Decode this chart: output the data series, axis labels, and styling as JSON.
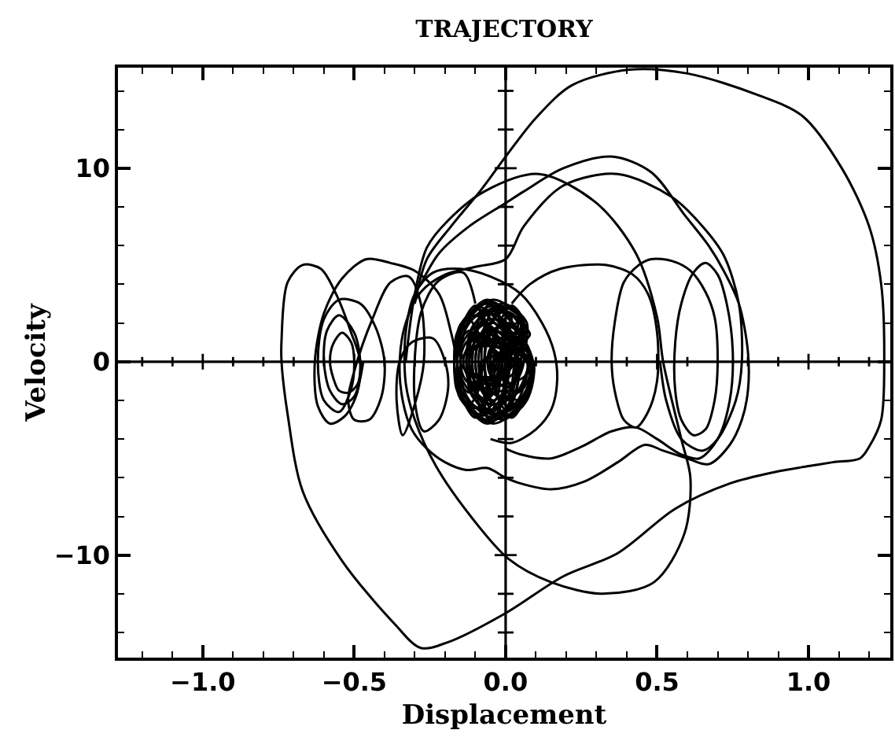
{
  "chart_data": {
    "type": "line",
    "title": "TRAJECTORY",
    "xlabel": "Displacement",
    "ylabel": "Velocity",
    "xlim": [
      -1.28,
      1.27
    ],
    "ylim": [
      -15.3,
      15.2
    ],
    "xticks": [
      {
        "value": -1.2,
        "label": null
      },
      {
        "value": -1.1,
        "label": null
      },
      {
        "value": -1.0,
        "label": "−1.0"
      },
      {
        "value": -0.9,
        "label": null
      },
      {
        "value": -0.8,
        "label": null
      },
      {
        "value": -0.7,
        "label": null
      },
      {
        "value": -0.6,
        "label": null
      },
      {
        "value": -0.5,
        "label": "−0.5"
      },
      {
        "value": -0.4,
        "label": null
      },
      {
        "value": -0.3,
        "label": null
      },
      {
        "value": -0.2,
        "label": null
      },
      {
        "value": -0.1,
        "label": null
      },
      {
        "value": 0.0,
        "label": "0.0"
      },
      {
        "value": 0.1,
        "label": null
      },
      {
        "value": 0.2,
        "label": null
      },
      {
        "value": 0.3,
        "label": null
      },
      {
        "value": 0.4,
        "label": null
      },
      {
        "value": 0.5,
        "label": "0.5"
      },
      {
        "value": 0.6,
        "label": null
      },
      {
        "value": 0.7,
        "label": null
      },
      {
        "value": 0.8,
        "label": null
      },
      {
        "value": 0.9,
        "label": null
      },
      {
        "value": 1.0,
        "label": "1.0"
      },
      {
        "value": 1.1,
        "label": null
      },
      {
        "value": 1.2,
        "label": null
      }
    ],
    "yticks": [
      {
        "value": -14,
        "label": null
      },
      {
        "value": -12,
        "label": null
      },
      {
        "value": -10,
        "label": "−10"
      },
      {
        "value": -8,
        "label": null
      },
      {
        "value": -6,
        "label": null
      },
      {
        "value": -4,
        "label": null
      },
      {
        "value": -2,
        "label": null
      },
      0,
      {
        "value": 2,
        "label": null
      },
      {
        "value": 4,
        "label": null
      },
      {
        "value": 6,
        "label": null
      },
      {
        "value": 8,
        "label": null
      },
      10,
      {
        "value": 12,
        "label": null
      },
      {
        "value": 14,
        "label": null
      }
    ],
    "ref_lines": [
      {
        "axis": "x",
        "value": 0
      },
      {
        "axis": "y",
        "value": 0
      }
    ],
    "series": [
      {
        "color": "#000000",
        "x": [
          -0.3,
          -0.26,
          -0.18,
          -0.08,
          0.0,
          0.1,
          0.22,
          0.41,
          0.6,
          0.83,
          0.98,
          1.11,
          1.2,
          1.24,
          1.25,
          1.24,
          1.2,
          1.17,
          1.08,
          1.0,
          0.89,
          0.74,
          0.56,
          0.37,
          0.19,
          0.0,
          -0.19,
          -0.28,
          -0.37,
          -0.54,
          -0.67,
          -0.72,
          -0.74,
          -0.74,
          -0.72,
          -0.67,
          -0.61,
          -0.56,
          -0.51,
          -0.48,
          -0.49,
          -0.53,
          -0.58,
          -0.62,
          -0.63,
          -0.6,
          -0.54,
          -0.46,
          -0.38,
          -0.3,
          -0.22,
          -0.18,
          -0.16
        ],
        "values": [
          3.0,
          5.3,
          7.0,
          8.9,
          10.6,
          12.6,
          14.3,
          15.1,
          14.9,
          13.8,
          12.7,
          10.0,
          7.0,
          4.0,
          0.0,
          -3.0,
          -4.4,
          -5.0,
          -5.2,
          -5.4,
          -5.7,
          -6.3,
          -7.6,
          -9.9,
          -11.1,
          -13.0,
          -14.5,
          -14.8,
          -13.5,
          -10.3,
          -6.7,
          -2.7,
          0.0,
          1.1,
          4.1,
          5.0,
          4.8,
          3.5,
          1.5,
          0.0,
          -1.6,
          -2.8,
          -3.2,
          -2.3,
          0.0,
          2.5,
          4.3,
          5.3,
          5.1,
          4.7,
          3.5,
          1.5,
          0.0
        ]
      },
      {
        "color": "#000000",
        "x": [
          -0.28,
          -0.22,
          -0.12,
          0.0,
          0.06,
          0.19,
          0.35,
          0.48,
          0.59,
          0.67,
          0.72,
          0.77,
          0.8,
          0.8,
          0.78,
          0.74,
          0.67,
          0.6,
          0.52,
          0.46,
          0.37,
          0.26,
          0.15,
          0.05,
          0.0,
          -0.06,
          -0.13,
          -0.2,
          -0.26,
          -0.31,
          -0.34,
          -0.35,
          -0.33,
          -0.28,
          -0.2,
          -0.1,
          0.0,
          0.06,
          0.19,
          0.37,
          0.55,
          0.65,
          0.72,
          0.77,
          0.78,
          0.76,
          0.7,
          0.65,
          0.58,
          0.53,
          0.51
        ],
        "values": [
          4.0,
          5.6,
          7.0,
          8.2,
          8.8,
          10.0,
          10.6,
          9.8,
          7.6,
          6.0,
          4.7,
          3.0,
          0.5,
          -1.5,
          -3.0,
          -4.3,
          -5.3,
          -5.0,
          -4.6,
          -4.3,
          -5.2,
          -6.2,
          -6.6,
          -6.3,
          -6.0,
          -5.5,
          -5.6,
          -5.2,
          -4.5,
          -3.5,
          -2.0,
          0.0,
          2.0,
          3.6,
          4.5,
          4.9,
          5.3,
          7.0,
          9.1,
          9.7,
          8.5,
          7.0,
          5.5,
          3.0,
          0.0,
          -2.0,
          -4.0,
          -4.6,
          -4.0,
          -2.0,
          0.0
        ]
      },
      {
        "color": "#000000",
        "x": [
          -0.33,
          -0.3,
          -0.26,
          -0.19,
          -0.07,
          0.11,
          0.3,
          0.43,
          0.5,
          0.52,
          0.58,
          0.61,
          0.59,
          0.49,
          0.32,
          0.15,
          0.01,
          -0.11,
          -0.23,
          -0.3,
          -0.33,
          -0.33,
          -0.3,
          -0.24,
          -0.15,
          -0.05,
          0.05,
          0.12,
          0.16,
          0.17,
          0.15,
          0.1,
          0.02,
          -0.05
        ],
        "values": [
          0.0,
          3.5,
          5.9,
          7.3,
          8.8,
          9.7,
          8.2,
          5.6,
          2.3,
          0.0,
          -4.0,
          -6.0,
          -8.9,
          -11.4,
          -12.0,
          -11.4,
          -10.2,
          -8.1,
          -5.4,
          -3.0,
          -1.1,
          1.5,
          3.5,
          4.6,
          4.8,
          4.4,
          3.5,
          2.0,
          0.5,
          -1.0,
          -2.5,
          -3.5,
          -4.2,
          -4.0
        ]
      },
      {
        "color": "#000000",
        "x": [
          0.02,
          0.08,
          0.18,
          0.33,
          0.42,
          0.47,
          0.5,
          0.5,
          0.47,
          0.43,
          0.39,
          0.36,
          0.35,
          0.36,
          0.39,
          0.44,
          0.48,
          0.55,
          0.61,
          0.66,
          0.69,
          0.7,
          0.69,
          0.66,
          0.62,
          0.58,
          0.56,
          0.56,
          0.58,
          0.62,
          0.66,
          0.7,
          0.73,
          0.75,
          0.74,
          0.7,
          0.64,
          0.58,
          0.5,
          0.43,
          0.35,
          0.25,
          0.15,
          0.05,
          0.0
        ],
        "values": [
          3.0,
          4.0,
          4.8,
          5.0,
          4.5,
          3.5,
          1.5,
          -1.0,
          -2.6,
          -3.4,
          -3.0,
          -1.5,
          0.0,
          2.0,
          4.1,
          5.0,
          5.3,
          5.2,
          4.7,
          3.6,
          2.3,
          0.0,
          -2.0,
          -3.5,
          -3.8,
          -3.0,
          -1.5,
          1.0,
          3.0,
          4.6,
          5.1,
          4.5,
          3.0,
          0.5,
          -2.0,
          -4.0,
          -5.0,
          -4.8,
          -4.0,
          -3.4,
          -3.6,
          -4.4,
          -5.0,
          -4.8,
          -4.5
        ]
      },
      {
        "color": "#000000",
        "x": [
          -0.47,
          -0.5,
          -0.54,
          -0.58,
          -0.6,
          -0.59,
          -0.55,
          -0.5,
          -0.48,
          -0.49,
          -0.52,
          -0.55,
          -0.57,
          -0.58,
          -0.57,
          -0.54,
          -0.51,
          -0.5,
          -0.51,
          -0.55,
          -0.6,
          -0.62,
          -0.6,
          -0.55,
          -0.48,
          -0.43,
          -0.4,
          -0.41,
          -0.45,
          -0.5,
          -0.52,
          -0.5,
          -0.44,
          -0.38,
          -0.32,
          -0.28,
          -0.27,
          -0.3,
          -0.34,
          -0.36,
          -0.35,
          -0.31,
          -0.24,
          -0.2,
          -0.19,
          -0.22,
          -0.27,
          -0.3,
          -0.28,
          -0.22,
          -0.14,
          -0.1
        ],
        "values": [
          0.0,
          -1.8,
          -2.2,
          -1.5,
          0.0,
          1.6,
          2.4,
          1.5,
          0.0,
          -1.2,
          -1.6,
          -1.5,
          -0.8,
          0.0,
          0.9,
          1.5,
          1.0,
          0.0,
          -1.4,
          -2.6,
          -2.0,
          0.0,
          2.2,
          3.2,
          3.0,
          1.8,
          0.0,
          -1.8,
          -3.0,
          -3.0,
          -2.0,
          -0.5,
          2.2,
          4.1,
          4.4,
          3.0,
          0.0,
          -2.2,
          -3.8,
          -2.0,
          0.0,
          1.0,
          1.2,
          0.0,
          -1.4,
          -3.0,
          -3.6,
          -2.0,
          2.5,
          4.2,
          4.6,
          3.0
        ]
      },
      {
        "color": "#000000",
        "x": [
          0.09,
          0.05,
          -0.04,
          -0.13,
          -0.17,
          -0.13,
          -0.04,
          0.05,
          0.05,
          0.02,
          -0.06,
          -0.14,
          -0.17,
          -0.14,
          -0.06,
          0.02,
          0.09,
          0.06,
          -0.02,
          -0.1,
          -0.13,
          -0.1,
          -0.02,
          0.06,
          0.01,
          -0.02,
          -0.08,
          -0.14,
          -0.17,
          -0.14,
          -0.08,
          -0.02,
          0.09,
          0.06,
          0.0,
          -0.06,
          -0.09,
          -0.06,
          0.0,
          0.06,
          0.03,
          0.01,
          -0.05,
          -0.11,
          -0.13,
          -0.11,
          -0.05,
          0.01,
          -0.03,
          -0.05,
          -0.1,
          -0.15,
          -0.17,
          -0.15,
          -0.1,
          -0.05,
          0.04,
          0.02,
          -0.03,
          -0.08,
          -0.1,
          -0.08,
          -0.03,
          0.02,
          0.09,
          0.07,
          0.02,
          -0.03,
          -0.05,
          -0.03,
          0.02,
          0.07,
          -0.01,
          -0.03,
          -0.07,
          -0.11,
          -0.13,
          -0.11,
          -0.07,
          -0.03,
          -0.01
        ],
        "values": [
          0.0,
          -2.2,
          -3.2,
          -2.2,
          0.0,
          2.2,
          3.2,
          2.2,
          0.0,
          -2.1,
          -3.0,
          -2.1,
          0.0,
          2.1,
          3.0,
          2.1,
          0.0,
          -2.0,
          -2.9,
          -2.0,
          0.0,
          2.0,
          2.9,
          2.0,
          0.0,
          -2.0,
          -2.8,
          -2.0,
          0.0,
          2.0,
          2.8,
          2.0,
          0.0,
          -1.8,
          -2.6,
          -1.8,
          0.0,
          1.8,
          2.6,
          1.8,
          0.0,
          -1.8,
          -2.5,
          -1.8,
          0.0,
          1.8,
          2.5,
          1.8,
          0.0,
          -1.7,
          -2.4,
          -1.7,
          0.0,
          1.7,
          2.4,
          1.7,
          0.0,
          -1.5,
          -2.2,
          -1.5,
          0.0,
          1.5,
          2.2,
          1.5,
          0.0,
          -1.7,
          -2.4,
          -1.7,
          0.0,
          1.7,
          2.4,
          1.7,
          0.0,
          -1.4,
          -2.0,
          -1.4,
          0.0,
          1.4,
          2.0,
          1.4,
          0.0
        ]
      },
      {
        "color": "#000000",
        "x": [
          0.08,
          0.04,
          -0.04,
          -0.12,
          -0.16,
          -0.12,
          -0.04,
          0.04,
          -0.01,
          -0.03,
          -0.09,
          -0.15,
          -0.17,
          -0.15,
          -0.09,
          -0.03,
          0.09,
          0.07,
          0.01,
          -0.05,
          -0.07,
          -0.05,
          0.01,
          0.07,
          0.05,
          0.02,
          -0.05,
          -0.12,
          -0.15,
          -0.12,
          -0.05,
          0.02,
          -0.07,
          -0.09,
          -0.12,
          -0.16,
          -0.17,
          -0.16,
          -0.12,
          -0.09,
          0.03,
          0.02,
          -0.02,
          -0.06,
          -0.07,
          -0.06,
          -0.02,
          0.02,
          -0.01,
          -0.03,
          -0.06,
          -0.1,
          -0.11,
          -0.1,
          -0.06,
          -0.03,
          0.09,
          0.08,
          0.04,
          0.0,
          -0.01,
          0.0,
          0.04,
          0.08,
          -0.04,
          -0.05,
          -0.08,
          -0.11,
          -0.12,
          -0.11,
          -0.08,
          -0.05,
          0.0,
          -0.01,
          -0.03,
          -0.05,
          -0.06,
          -0.05,
          -0.03,
          -0.01,
          0.0
        ],
        "values": [
          0.0,
          -2.0,
          -2.9,
          -2.0,
          0.0,
          2.0,
          2.9,
          2.0,
          0.0,
          -1.9,
          -2.7,
          -1.9,
          0.0,
          1.9,
          2.7,
          1.9,
          0.0,
          -2.0,
          -2.8,
          -2.0,
          0.0,
          2.0,
          2.8,
          2.0,
          0.0,
          -2.2,
          -3.1,
          -2.2,
          0.0,
          2.2,
          3.1,
          2.2,
          0.0,
          -1.5,
          -2.2,
          -1.5,
          0.0,
          1.5,
          2.2,
          1.5,
          0.0,
          -1.3,
          -1.8,
          -1.3,
          0.0,
          1.3,
          1.8,
          1.3,
          0.0,
          -1.1,
          -1.6,
          -1.1,
          0.0,
          1.1,
          1.6,
          1.1,
          0.0,
          -1.4,
          -2.0,
          -1.4,
          0.0,
          1.4,
          2.0,
          1.4,
          0.0,
          -0.8,
          -1.2,
          -0.8,
          0.0,
          0.8,
          1.2,
          0.8,
          0.0,
          -0.7,
          -1.0,
          -0.7,
          0.0,
          0.7,
          1.0,
          0.7,
          0.0
        ]
      },
      {
        "color": "#000000",
        "x": [
          0.08,
          0.04,
          -0.04,
          -0.12,
          -0.16,
          -0.12,
          -0.04,
          0.04,
          0.06,
          0.03,
          -0.04,
          -0.11,
          -0.14,
          -0.11,
          -0.04,
          0.03,
          0.04,
          0.02,
          -0.04,
          -0.1,
          -0.12,
          -0.1,
          -0.04,
          0.02,
          0.09,
          0.05,
          -0.04,
          -0.13,
          -0.17,
          -0.13,
          -0.04,
          0.05,
          -0.04,
          -0.06,
          -0.1,
          -0.14,
          -0.16,
          -0.14,
          -0.1,
          -0.06,
          0.08,
          0.06,
          0.02,
          -0.02,
          -0.04,
          -0.02,
          0.02,
          0.06,
          0.0,
          -0.01,
          -0.04,
          -0.07,
          -0.08,
          -0.07,
          -0.04,
          -0.01,
          -0.02,
          -0.04,
          -0.07,
          -0.11,
          -0.12,
          -0.11,
          -0.07,
          -0.04,
          0.05,
          0.04,
          0.0,
          -0.04,
          -0.05,
          -0.04,
          0.0,
          0.04,
          -0.02,
          -0.03,
          -0.04,
          -0.05,
          -0.06,
          -0.05,
          -0.04,
          -0.03,
          -0.02
        ],
        "values": [
          0.0,
          -1.5,
          -2.2,
          -1.5,
          0.0,
          1.5,
          2.2,
          1.5,
          0.0,
          -1.1,
          -1.6,
          -1.1,
          0.0,
          1.1,
          1.6,
          1.1,
          0.0,
          -0.7,
          -1.0,
          -0.7,
          0.0,
          0.7,
          1.0,
          0.7,
          0.0,
          -1.9,
          -2.7,
          -1.9,
          0.0,
          1.9,
          2.7,
          1.9,
          0.0,
          -2.0,
          -2.9,
          -2.0,
          0.0,
          2.0,
          2.9,
          2.0,
          0.0,
          -2.0,
          -2.9,
          -2.0,
          0.0,
          2.0,
          2.9,
          2.0,
          0.0,
          -1.8,
          -2.6,
          -1.8,
          0.0,
          1.8,
          2.6,
          1.8,
          0.0,
          -1.3,
          -1.9,
          -1.3,
          0.0,
          1.3,
          1.9,
          1.3,
          0.0,
          -0.9,
          -1.3,
          -0.9,
          0.0,
          0.9,
          1.3,
          0.9,
          0.0,
          -0.4,
          -0.5,
          -0.4,
          0.0,
          0.4,
          0.5,
          0.4,
          0.0
        ]
      },
      {
        "color": "#000000",
        "x": [
          0.04,
          0.01,
          -0.06,
          -0.13,
          -0.16,
          -0.13,
          -0.06,
          0.01,
          0.09,
          0.06,
          -0.01,
          -0.08,
          -0.11,
          -0.08,
          -0.01,
          0.06,
          -0.01,
          -0.03,
          -0.08,
          -0.13,
          -0.15,
          -0.13,
          -0.08,
          -0.03,
          0.07,
          0.05,
          0.0,
          -0.05,
          -0.07,
          -0.05,
          0.0,
          0.05,
          0.03,
          0.0,
          -0.06,
          -0.12,
          -0.15,
          -0.12,
          -0.06,
          0.0,
          0.01,
          -0.01,
          -0.05,
          -0.09,
          -0.11,
          -0.09,
          -0.05,
          -0.01,
          0.09,
          0.06,
          -0.02,
          -0.1,
          -0.13,
          -0.1,
          -0.02,
          0.06,
          -0.08,
          -0.09,
          -0.12,
          -0.15,
          -0.16,
          -0.15,
          -0.12,
          -0.09,
          0.08,
          0.07,
          0.04,
          0.01,
          0.0,
          0.01,
          0.04,
          0.07,
          0.02,
          0.0,
          -0.04,
          -0.08,
          -0.1,
          -0.08,
          -0.04,
          0.0,
          0.02
        ],
        "values": [
          0.0,
          -2.2,
          -3.2,
          -2.2,
          0.0,
          2.2,
          3.2,
          2.2,
          0.0,
          -2.1,
          -3.0,
          -2.1,
          0.0,
          2.1,
          3.0,
          2.1,
          0.0,
          -1.0,
          -1.4,
          -1.0,
          0.0,
          1.0,
          1.4,
          1.0,
          0.0,
          -1.4,
          -2.0,
          -1.4,
          0.0,
          1.4,
          2.0,
          1.4,
          0.0,
          -0.6,
          -0.8,
          -0.6,
          0.0,
          0.6,
          0.8,
          0.6,
          0.0,
          -2.1,
          -3.0,
          -2.1,
          0.0,
          2.1,
          3.0,
          2.1,
          0.0,
          -0.8,
          -1.2,
          -0.8,
          0.0,
          0.8,
          1.2,
          0.8,
          0.0,
          -1.1,
          -1.6,
          -1.1,
          0.0,
          1.1,
          1.6,
          1.1,
          0.0,
          -1.1,
          -1.6,
          -1.1,
          0.0,
          1.1,
          1.6,
          1.1,
          0.0,
          -1.4,
          -2.0,
          -1.4,
          0.0,
          1.4,
          2.0,
          1.4,
          0.0
        ]
      }
    ]
  }
}
